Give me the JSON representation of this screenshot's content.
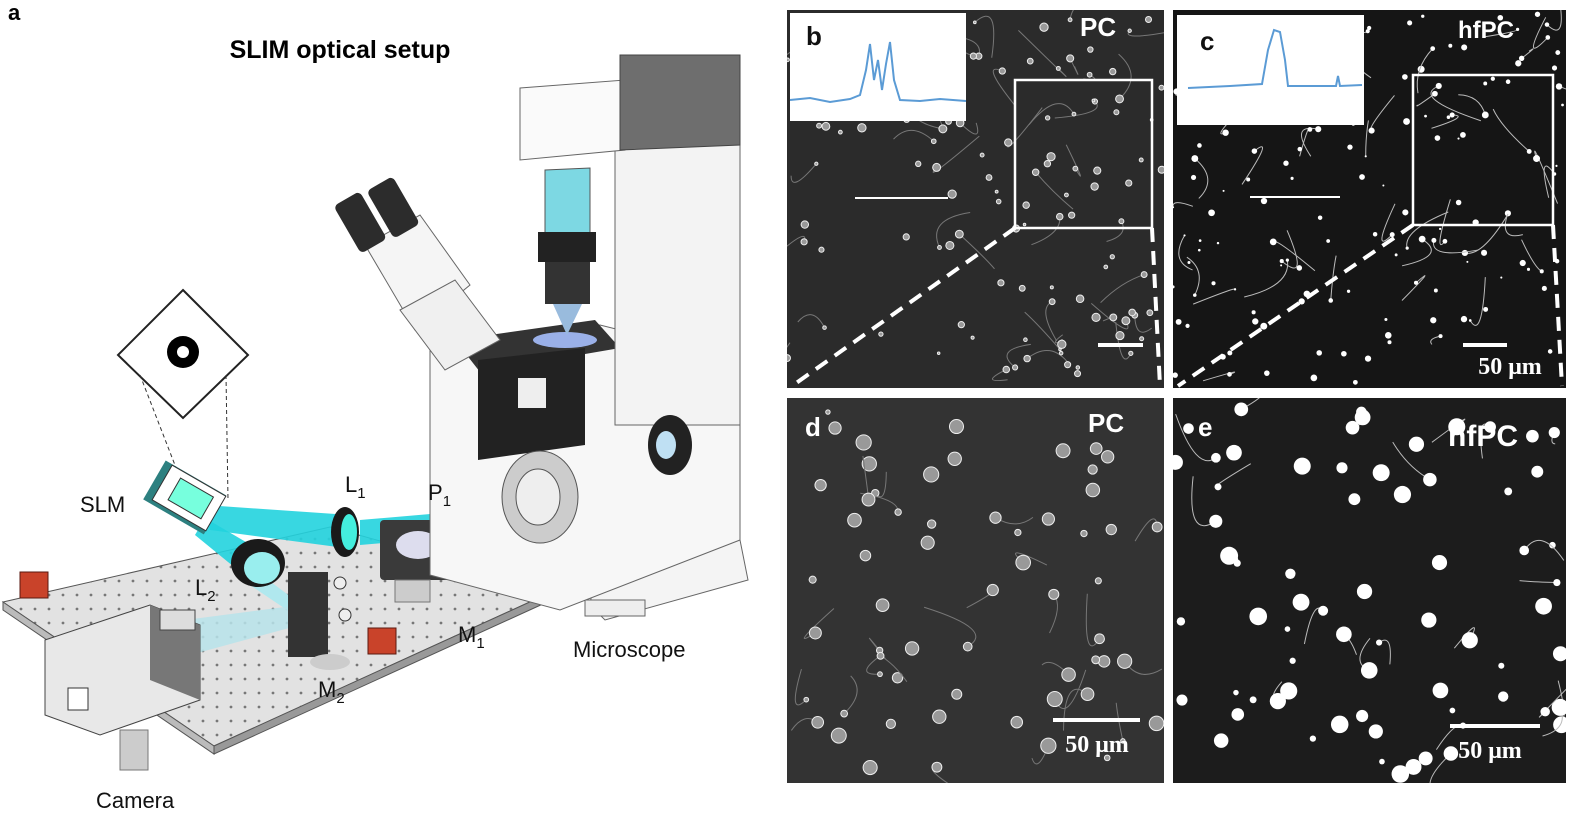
{
  "panel_a": {
    "label": "a",
    "title": "SLIM optical setup",
    "components": {
      "slm": "SLM",
      "l1": {
        "main": "L",
        "sub": "1"
      },
      "p1": {
        "main": "P",
        "sub": "1"
      },
      "l2": {
        "main": "L",
        "sub": "2"
      },
      "m1": {
        "main": "M",
        "sub": "1"
      },
      "m2": {
        "main": "M",
        "sub": "2"
      },
      "microscope": "Microscope",
      "camera": "Camera"
    }
  },
  "panel_b": {
    "label": "b",
    "mode": "PC"
  },
  "panel_c": {
    "label": "c",
    "mode": "hfPC",
    "scale_bar": "50 μm"
  },
  "panel_d": {
    "label": "d",
    "mode": "PC",
    "scale_bar": "50 μm"
  },
  "panel_e": {
    "label": "e",
    "mode": "hfPC",
    "scale_bar": "50 μm"
  }
}
